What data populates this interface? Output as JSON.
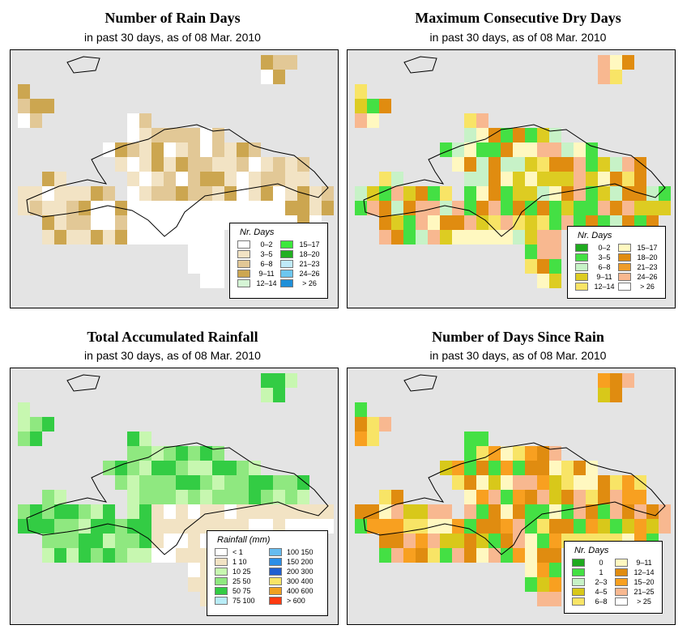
{
  "panels": [
    {
      "id": "rain-days",
      "title": "Number of Rain Days",
      "subtitle": "in past 30 days, as of  08 Mar. 2010",
      "legend": {
        "title": "Nr. Days",
        "items": [
          {
            "label": "0–2",
            "color": "#ffffff"
          },
          {
            "label": "3–5",
            "color": "#f2e3c4"
          },
          {
            "label": "6–8",
            "color": "#e2c896"
          },
          {
            "label": "9–11",
            "color": "#cca650"
          },
          {
            "label": "12–14",
            "color": "#d5f5d5"
          },
          {
            "label": "15–17",
            "color": "#3ce83c"
          },
          {
            "label": "18–20",
            "color": "#22b022"
          },
          {
            "label": "21–23",
            "color": "#bfeaf8"
          },
          {
            "label": "24–26",
            "color": "#6cc6ef"
          },
          {
            "label": "> 26",
            "color": "#1f8fd8"
          }
        ]
      }
    },
    {
      "id": "max-dry-days",
      "title": "Maximum Consecutive Dry Days",
      "subtitle": "in past 30 days, as of  08 Mar. 2010",
      "legend": {
        "title": "Nr. Days",
        "items": [
          {
            "label": "0–2",
            "color": "#1faa1f"
          },
          {
            "label": "3–5",
            "color": "#44e044"
          },
          {
            "label": "6–8",
            "color": "#c7f2c7"
          },
          {
            "label": "9–11",
            "color": "#ddcc22"
          },
          {
            "label": "12–14",
            "color": "#f8e466"
          },
          {
            "label": "15–17",
            "color": "#fff8c0"
          },
          {
            "label": "18–20",
            "color": "#e08c10"
          },
          {
            "label": "21–23",
            "color": "#ee9c2a"
          },
          {
            "label": "24–26",
            "color": "#f8b890"
          },
          {
            "label": "> 26",
            "color": "#ffffff"
          }
        ]
      }
    },
    {
      "id": "total-rainfall",
      "title": "Total Accumulated Rainfall",
      "subtitle": "in past 30 days, as of  08 Mar. 2010",
      "legend": {
        "title": "Rainfall (mm)",
        "items": [
          {
            "label": "< 1",
            "color": "#ffffff"
          },
          {
            "label": "1    10",
            "color": "#f2e3c4"
          },
          {
            "label": "10   25",
            "color": "#c7f7b0"
          },
          {
            "label": "25   50",
            "color": "#8fe880"
          },
          {
            "label": "50   75",
            "color": "#33cc44"
          },
          {
            "label": "75  100",
            "color": "#b8ecf6"
          },
          {
            "label": "100  150",
            "color": "#66bcf0"
          },
          {
            "label": "150  200",
            "color": "#2a8ee8"
          },
          {
            "label": "200  300",
            "color": "#1f5fd0"
          },
          {
            "label": "300  400",
            "color": "#f8e466"
          },
          {
            "label": "400  600",
            "color": "#f0a020"
          },
          {
            "label": "> 600",
            "color": "#ff3a10"
          }
        ]
      }
    },
    {
      "id": "days-since-rain",
      "title": "Number of Days Since Rain",
      "subtitle": "in past 30 days, as of  08 Mar. 2010",
      "legend": {
        "title": "Nr. Days",
        "items": [
          {
            "label": "0",
            "color": "#1faa1f"
          },
          {
            "label": "1",
            "color": "#44e044"
          },
          {
            "label": "2–3",
            "color": "#c7f2c7"
          },
          {
            "label": "4–5",
            "color": "#d8c81a"
          },
          {
            "label": "6–8",
            "color": "#f8e466"
          },
          {
            "label": "9–11",
            "color": "#fff8c0"
          },
          {
            "label": "12–14",
            "color": "#e08c10"
          },
          {
            "label": "15–20",
            "color": "#f8a020"
          },
          {
            "label": "21–25",
            "color": "#f8b890"
          },
          {
            "label": "> 25",
            "color": "#ffffff"
          }
        ]
      }
    }
  ]
}
